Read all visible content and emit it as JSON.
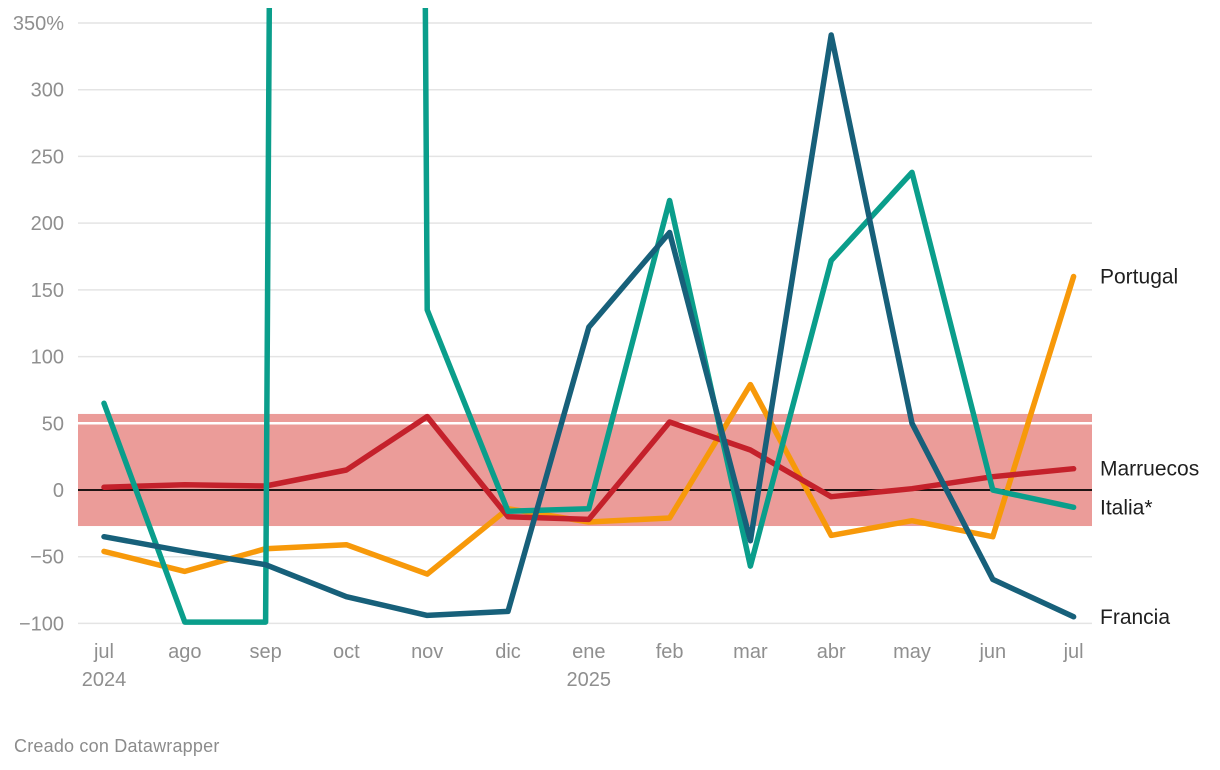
{
  "chart_data": {
    "type": "line",
    "title": "",
    "x_categories": [
      "jul",
      "ago",
      "sep",
      "oct",
      "nov",
      "dic",
      "ene",
      "feb",
      "mar",
      "abr",
      "may",
      "jun",
      "jul"
    ],
    "x_year_labels": [
      {
        "index": 0,
        "label": "2024"
      },
      {
        "index": 6,
        "label": "2025"
      }
    ],
    "y_ticks": [
      {
        "value": 350,
        "label": "350%"
      },
      {
        "value": 300,
        "label": "300"
      },
      {
        "value": 250,
        "label": "250"
      },
      {
        "value": 200,
        "label": "200"
      },
      {
        "value": 150,
        "label": "150"
      },
      {
        "value": 100,
        "label": "100"
      },
      {
        "value": 50,
        "label": "50"
      },
      {
        "value": 0,
        "label": "0"
      },
      {
        "value": -50,
        "label": "−50"
      },
      {
        "value": -100,
        "label": "−100"
      }
    ],
    "ylim": [
      -100,
      350
    ],
    "grid": "horizontal",
    "zero_line": true,
    "legend_position": "right-of-line-ends",
    "band": {
      "from": -27,
      "to": 57,
      "color": "#eb9c99",
      "gridline_inside_color": "#ffffff"
    },
    "series": [
      {
        "name": "Portugal",
        "color": "#f7990a",
        "values": [
          -46,
          -61,
          -44,
          -41,
          -63,
          -14,
          -24,
          -21,
          79,
          -34,
          -23,
          -35,
          160
        ]
      },
      {
        "name": "Marruecos",
        "color": "#c4212b",
        "values": [
          2,
          4,
          3,
          15,
          55,
          -20,
          -22,
          51,
          30,
          -5,
          1,
          10,
          16
        ]
      },
      {
        "name": "Italia*",
        "color": "#0a9e8b",
        "values": [
          65,
          -99,
          -99,
          9999,
          135,
          -16,
          -14,
          217,
          -57,
          172,
          238,
          0,
          -13
        ]
      },
      {
        "name": "Francia",
        "color": "#17607a",
        "values": [
          -35,
          -46,
          -56,
          -80,
          -94,
          -91,
          122,
          193,
          -38,
          341,
          50,
          -67,
          -95
        ]
      }
    ],
    "notes": "Italia* oct 2024 spikes above the visible axis (line clipped at top, >350%); plotted sentinel 9999."
  },
  "colors": {
    "gridline": "#e4e4e4",
    "zero_line": "#000000",
    "axis_text": "#8f8f8f",
    "series_label_text": "#1f1f1f"
  },
  "footer": {
    "credit": "Creado con Datawrapper"
  }
}
